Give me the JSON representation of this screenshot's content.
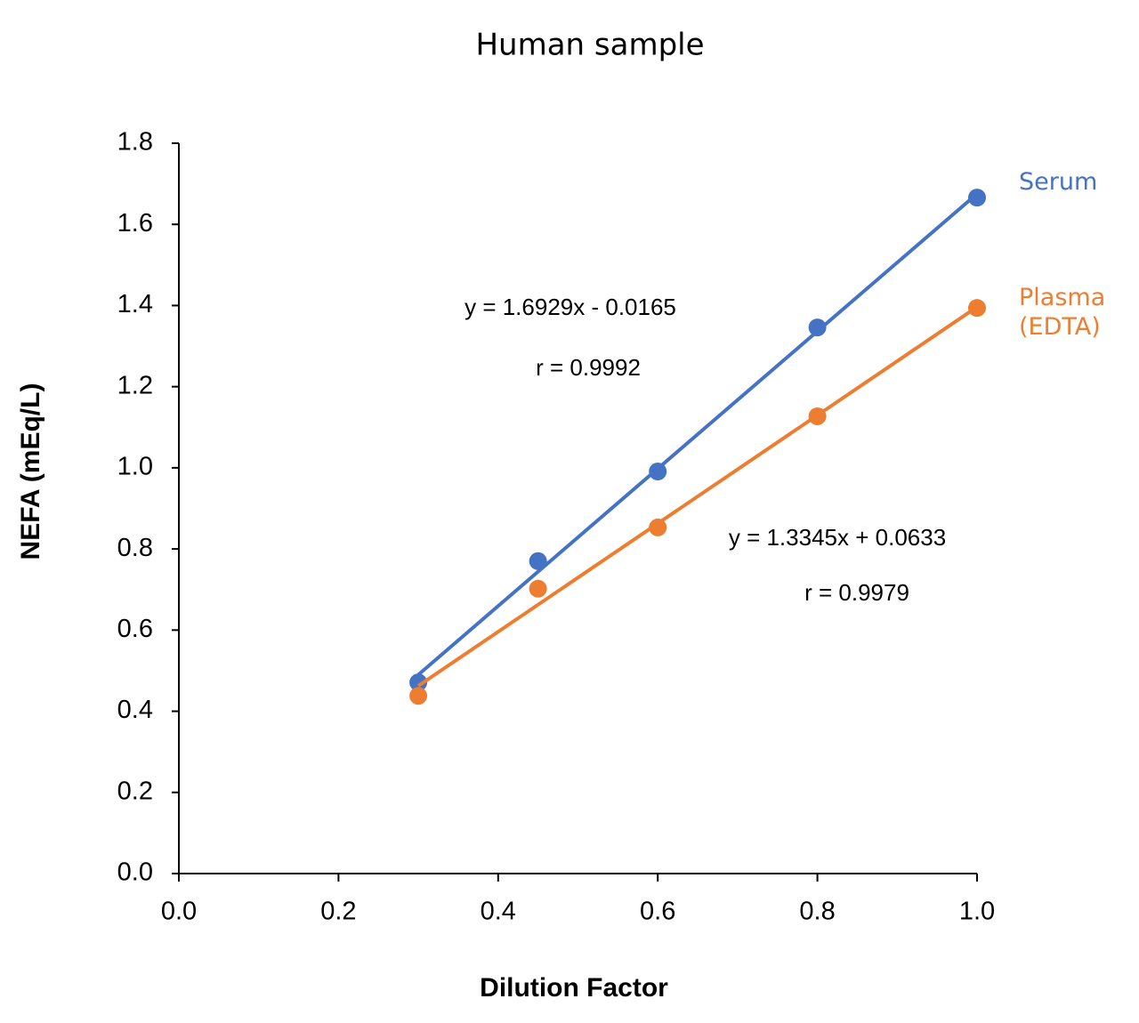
{
  "chart_data": {
    "type": "scatter",
    "title": "Human sample",
    "x_label": "Dilution Factor",
    "y_label": "NEFA (mEq/L)",
    "xlim": [
      0,
      1
    ],
    "xticks": [
      {
        "value": 0,
        "label": "0.0"
      },
      0.2,
      0.4,
      0.6,
      0.8,
      {
        "value": 1,
        "label": "1.0"
      }
    ],
    "ylim": [
      0,
      1.8
    ],
    "yticks": [
      {
        "value": 0,
        "label": "0.0"
      },
      0.2,
      0.4,
      0.6,
      0.8,
      {
        "value": 1,
        "label": "1.0"
      },
      1.2,
      1.4,
      1.6,
      1.8
    ],
    "grid": false,
    "trendline": true,
    "series": [
      {
        "name": "Serum",
        "color": "#4472c4",
        "x": [
          0.3,
          0.45,
          0.6,
          0.8,
          1.0
        ],
        "values": [
          0.471,
          0.77,
          0.991,
          1.346,
          1.666
        ]
      },
      {
        "name": "Plasma (EDTA)",
        "color": "#ed7d31",
        "x": [
          0.3,
          0.45,
          0.6,
          0.8,
          1.0
        ],
        "values": [
          0.438,
          0.702,
          0.853,
          1.127,
          1.394
        ]
      }
    ],
    "annotations": [
      "y = 1.6929x - 0.0165",
      "r = 0.9992",
      "y = 1.3345x + 0.0633",
      "r = 0.9979"
    ]
  }
}
